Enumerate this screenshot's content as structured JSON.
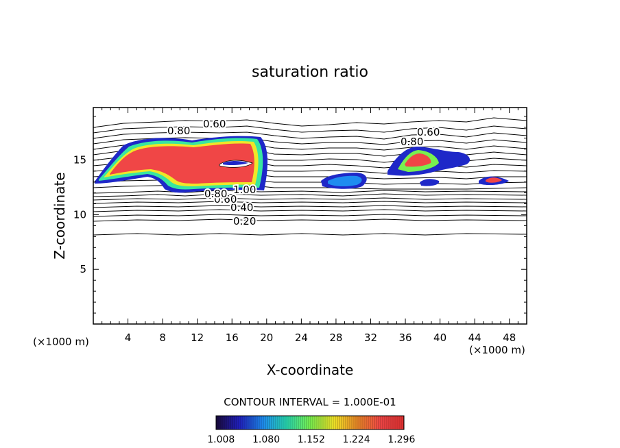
{
  "chart_data": {
    "type": "heatmap",
    "title": "saturation ratio",
    "xlabel": "X-coordinate",
    "ylabel": "Z-coordinate",
    "x_unit_label": "(×1000 m)",
    "z_unit_label": "(×1000 m)",
    "xlim": [
      0,
      50
    ],
    "ylim": [
      0,
      19.8
    ],
    "x_ticks": [
      "4",
      "8",
      "12",
      "16",
      "20",
      "24",
      "28",
      "32",
      "36",
      "40",
      "44",
      "48"
    ],
    "y_ticks": [
      "5",
      "10",
      "15"
    ],
    "contour_labels": [
      "0.20",
      "0.40",
      "0.60",
      "0.80",
      "1.00",
      "0.60",
      "0.80",
      "0.60",
      "0.80"
    ],
    "contour_interval_text": "CONTOUR INTERVAL = 1.000E-01",
    "colorbar_ticks": [
      "1.008",
      "1.080",
      "1.152",
      "1.224",
      "1.296"
    ],
    "colorbar_range": [
      1.0,
      1.3
    ],
    "colormap": [
      "#1a0a3c",
      "#2020c0",
      "#1e8cf0",
      "#28dcb4",
      "#78f050",
      "#f0e628",
      "#f08c28",
      "#f04646",
      "#e63232"
    ],
    "grid": false,
    "legend": "bottom-center colorbar"
  }
}
